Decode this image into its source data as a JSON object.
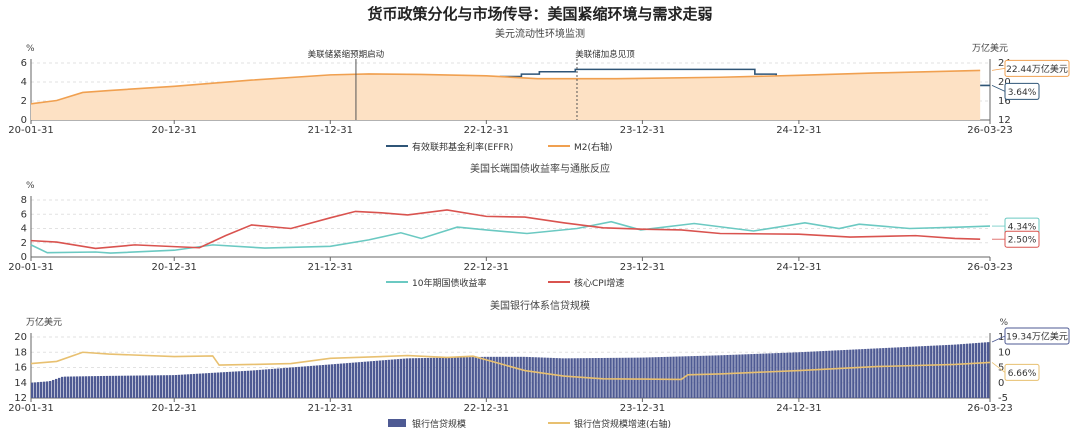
{
  "title": "货币政策分化与市场传导：美国紧缩环境与需求走弱",
  "colors": {
    "effr": "#2f5577",
    "m2_line": "#f0a050",
    "m2_fill": "#fde1c4",
    "treasury": "#6bc9c2",
    "cpi": "#d9534f",
    "loan_bar": "#4e5a93",
    "loan_growth": "#e8c070",
    "grid": "#e2e2e2",
    "axis": "#666666"
  },
  "chart_data": [
    {
      "type": "line",
      "title": "美元流动性环境监测",
      "ylabel": "%",
      "ylabel_right": "万亿美元",
      "ylim": [
        0,
        6
      ],
      "yticks": [
        0,
        2,
        4,
        6
      ],
      "ylim_right": [
        12,
        24
      ],
      "yticks_right": [
        12,
        16,
        20,
        24
      ],
      "x_ticks": [
        "20-01-31",
        "20-12-31",
        "21-12-31",
        "22-12-31",
        "23-12-31",
        "24-12-31",
        "26-03-23"
      ],
      "annotations": [
        {
          "x": "2022-03-01",
          "label": "美联储紧缩预期启动",
          "style": "solid"
        },
        {
          "x": "2023-07-31",
          "label": "美联储加息见顶",
          "style": "dashed"
        }
      ],
      "series": [
        {
          "name": "有效联邦基金利率(EFFR)",
          "axis": "left",
          "step": true,
          "points": [
            [
              "2020-01-31",
              1.6
            ],
            [
              "2020-02-28",
              1.6
            ],
            [
              "2020-03-16",
              0.65
            ],
            [
              "2020-03-31",
              0.08
            ],
            [
              "2022-03-17",
              0.33
            ],
            [
              "2022-05-05",
              0.83
            ],
            [
              "2022-06-16",
              1.58
            ],
            [
              "2022-07-28",
              2.33
            ],
            [
              "2022-09-22",
              3.08
            ],
            [
              "2022-11-03",
              3.83
            ],
            [
              "2022-12-15",
              4.33
            ],
            [
              "2023-02-02",
              4.58
            ],
            [
              "2023-03-23",
              4.83
            ],
            [
              "2023-05-04",
              5.08
            ],
            [
              "2023-07-27",
              5.33
            ],
            [
              "2024-09-19",
              4.83
            ],
            [
              "2024-11-08",
              4.58
            ],
            [
              "2024-12-19",
              4.33
            ],
            [
              "2025-09-18",
              4.08
            ],
            [
              "2025-10-30",
              3.88
            ],
            [
              "2025-12-11",
              3.64
            ],
            [
              "2026-03-23",
              3.64
            ]
          ]
        },
        {
          "name": "M2(右轴)",
          "axis": "right",
          "area": true,
          "points": [
            [
              "2020-01-31",
              15.4
            ],
            [
              "2020-03-31",
              16.1
            ],
            [
              "2020-05-31",
              17.8
            ],
            [
              "2020-07-31",
              18.2
            ],
            [
              "2020-12-31",
              19.1
            ],
            [
              "2021-06-30",
              20.4
            ],
            [
              "2021-12-31",
              21.5
            ],
            [
              "2022-03-31",
              21.7
            ],
            [
              "2022-07-31",
              21.6
            ],
            [
              "2022-12-31",
              21.3
            ],
            [
              "2023-04-30",
              20.7
            ],
            [
              "2023-10-31",
              20.7
            ],
            [
              "2024-06-30",
              21.0
            ],
            [
              "2024-12-31",
              21.4
            ],
            [
              "2025-06-30",
              21.9
            ],
            [
              "2025-12-31",
              22.3
            ],
            [
              "2026-02-28",
              22.44
            ]
          ]
        }
      ],
      "end_labels": [
        {
          "series": "M2(右轴)",
          "text": "22.44万亿美元"
        },
        {
          "series": "有效联邦基金利率(EFFR)",
          "text": "3.64%"
        }
      ]
    },
    {
      "type": "line",
      "title": "美国长端国债收益率与通胀反应",
      "ylabel": "%",
      "ylim": [
        0,
        8
      ],
      "yticks": [
        0,
        2,
        4,
        6,
        8
      ],
      "x_ticks": [
        "20-01-31",
        "20-12-31",
        "21-12-31",
        "22-12-31",
        "23-12-31",
        "24-12-31",
        "26-03-23"
      ],
      "series": [
        {
          "name": "10年期国债收益率",
          "points": [
            [
              "2020-01-31",
              1.7
            ],
            [
              "2020-03-09",
              0.6
            ],
            [
              "2020-06-30",
              0.7
            ],
            [
              "2020-08-04",
              0.55
            ],
            [
              "2020-12-31",
              0.95
            ],
            [
              "2021-03-31",
              1.7
            ],
            [
              "2021-07-31",
              1.25
            ],
            [
              "2021-12-31",
              1.5
            ],
            [
              "2022-03-31",
              2.4
            ],
            [
              "2022-06-14",
              3.4
            ],
            [
              "2022-08-01",
              2.6
            ],
            [
              "2022-10-24",
              4.2
            ],
            [
              "2022-12-31",
              3.8
            ],
            [
              "2023-04-05",
              3.3
            ],
            [
              "2023-07-31",
              4.0
            ],
            [
              "2023-10-19",
              4.95
            ],
            [
              "2023-12-27",
              3.8
            ],
            [
              "2024-04-30",
              4.7
            ],
            [
              "2024-09-16",
              3.65
            ],
            [
              "2025-01-14",
              4.8
            ],
            [
              "2025-04-04",
              4.0
            ],
            [
              "2025-05-21",
              4.6
            ],
            [
              "2025-09-16",
              4.0
            ],
            [
              "2026-01-15",
              4.2
            ],
            [
              "2026-03-23",
              4.34
            ]
          ]
        },
        {
          "name": "核心CPI增速",
          "points": [
            [
              "2020-01-31",
              2.3
            ],
            [
              "2020-03-31",
              2.1
            ],
            [
              "2020-06-30",
              1.2
            ],
            [
              "2020-09-30",
              1.7
            ],
            [
              "2021-02-28",
              1.3
            ],
            [
              "2021-04-30",
              3.0
            ],
            [
              "2021-06-30",
              4.5
            ],
            [
              "2021-09-30",
              4.0
            ],
            [
              "2021-12-31",
              5.5
            ],
            [
              "2022-02-28",
              6.4
            ],
            [
              "2022-04-30",
              6.2
            ],
            [
              "2022-06-30",
              5.9
            ],
            [
              "2022-09-30",
              6.6
            ],
            [
              "2022-12-31",
              5.7
            ],
            [
              "2023-03-31",
              5.6
            ],
            [
              "2023-06-30",
              4.8
            ],
            [
              "2023-09-30",
              4.1
            ],
            [
              "2023-12-31",
              3.9
            ],
            [
              "2024-03-31",
              3.8
            ],
            [
              "2024-06-30",
              3.3
            ],
            [
              "2024-12-31",
              3.2
            ],
            [
              "2025-04-30",
              2.8
            ],
            [
              "2025-09-30",
              3.0
            ],
            [
              "2025-12-31",
              2.6
            ],
            [
              "2026-02-28",
              2.5
            ]
          ]
        }
      ],
      "end_labels": [
        {
          "series": "10年期国债收益率",
          "text": "4.34%"
        },
        {
          "series": "核心CPI增速",
          "text": "2.50%"
        }
      ]
    },
    {
      "type": "bar",
      "title": "美国银行体系信贷规模",
      "ylabel": "万亿美元",
      "ylabel_right": "%",
      "ylim": [
        12,
        20
      ],
      "yticks": [
        12,
        14,
        16,
        18,
        20
      ],
      "ylim_right": [
        -5,
        15
      ],
      "yticks_right": [
        -5,
        0,
        5,
        10,
        15
      ],
      "x_ticks": [
        "20-01-31",
        "20-12-31",
        "21-12-31",
        "22-12-31",
        "23-12-31",
        "24-12-31",
        "26-03-23"
      ],
      "series": [
        {
          "name": "银行信贷规模",
          "axis": "left",
          "kind": "bar",
          "points": [
            [
              "2020-01-31",
              14.0
            ],
            [
              "2020-03-15",
              14.2
            ],
            [
              "2020-04-15",
              14.8
            ],
            [
              "2020-07-31",
              14.9
            ],
            [
              "2020-12-31",
              15.0
            ],
            [
              "2021-06-30",
              15.6
            ],
            [
              "2021-12-31",
              16.4
            ],
            [
              "2022-06-30",
              17.2
            ],
            [
              "2022-12-31",
              17.4
            ],
            [
              "2023-03-31",
              17.4
            ],
            [
              "2023-06-30",
              17.2
            ],
            [
              "2023-12-31",
              17.3
            ],
            [
              "2024-06-30",
              17.6
            ],
            [
              "2024-12-31",
              18.0
            ],
            [
              "2025-06-30",
              18.5
            ],
            [
              "2025-12-31",
              19.0
            ],
            [
              "2026-03-23",
              19.34
            ]
          ]
        },
        {
          "name": "银行信贷规模增速(右轴)",
          "axis": "right",
          "kind": "line",
          "points": [
            [
              "2020-01-31",
              6.3
            ],
            [
              "2020-03-31",
              7.0
            ],
            [
              "2020-05-31",
              10.0
            ],
            [
              "2020-07-31",
              9.4
            ],
            [
              "2020-12-31",
              8.6
            ],
            [
              "2021-03-31",
              8.8
            ],
            [
              "2021-04-15",
              5.8
            ],
            [
              "2021-06-30",
              6.0
            ],
            [
              "2021-09-30",
              6.3
            ],
            [
              "2021-12-31",
              8.0
            ],
            [
              "2022-06-30",
              8.9
            ],
            [
              "2022-09-30",
              8.3
            ],
            [
              "2022-11-30",
              8.7
            ],
            [
              "2023-01-31",
              6.3
            ],
            [
              "2023-03-31",
              4.0
            ],
            [
              "2023-06-30",
              2.2
            ],
            [
              "2023-09-30",
              1.3
            ],
            [
              "2023-12-31",
              1.2
            ],
            [
              "2024-03-31",
              1.1
            ],
            [
              "2024-04-15",
              2.6
            ],
            [
              "2024-06-30",
              2.9
            ],
            [
              "2024-12-31",
              4.0
            ],
            [
              "2025-06-30",
              5.3
            ],
            [
              "2025-12-31",
              6.0
            ],
            [
              "2026-03-23",
              6.66
            ]
          ]
        }
      ],
      "end_labels": [
        {
          "series": "银行信贷规模",
          "text": "19.34万亿美元"
        },
        {
          "series": "银行信贷规模增速(右轴)",
          "text": "6.66%"
        }
      ]
    }
  ]
}
